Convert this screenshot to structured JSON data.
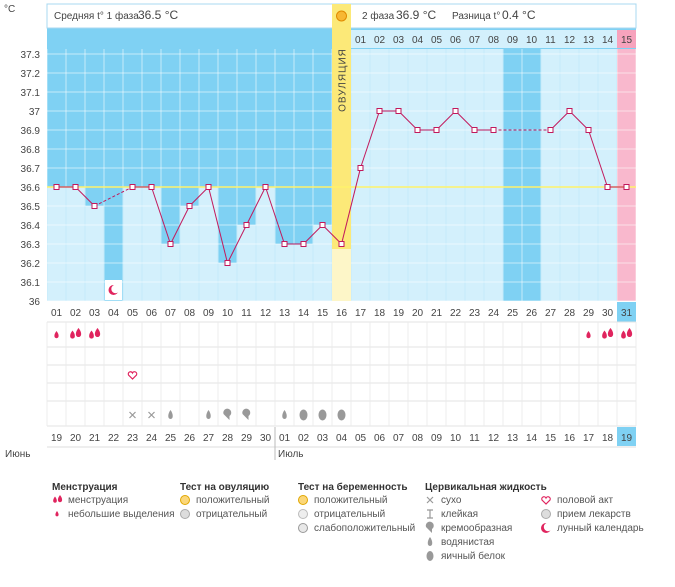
{
  "chart_data": {
    "type": "line",
    "ylabel": "°C",
    "yticks": [
      "37.3",
      "37.2",
      "37.1",
      "37",
      "36.9",
      "36.8",
      "36.7",
      "36.6",
      "36.5",
      "36.4",
      "36.3",
      "36.2",
      "36.1",
      "36"
    ],
    "ylim": [
      36,
      37.35
    ],
    "coverline": 36.6,
    "header": {
      "phase1_label": "Средняя t° 1 фаза",
      "phase1_value": "36.5 °C",
      "phase2_label": "2 фаза",
      "phase2_value": "36.9 °C",
      "diff_label": "Разница t°",
      "diff_value": "0.4 °C",
      "ovulation_label": "ОВУЛЯЦИЯ"
    },
    "cycle_days": [
      "01",
      "02",
      "03",
      "04",
      "05",
      "06",
      "07",
      "08",
      "09",
      "10",
      "11",
      "12",
      "13",
      "14",
      "15",
      "16",
      "17",
      "18",
      "19",
      "20",
      "21",
      "22",
      "23",
      "24",
      "25",
      "26",
      "27",
      "28",
      "29",
      "30",
      "31"
    ],
    "post_ovulation_days": [
      "01",
      "02",
      "03",
      "04",
      "05",
      "06",
      "07",
      "08",
      "09",
      "10",
      "11",
      "12",
      "13",
      "14",
      "15"
    ],
    "temperatures": [
      36.6,
      36.6,
      36.5,
      null,
      36.6,
      36.6,
      36.3,
      36.5,
      36.6,
      36.2,
      36.4,
      36.6,
      36.3,
      36.3,
      36.4,
      36.3,
      36.7,
      37.0,
      37.0,
      36.9,
      36.9,
      37.0,
      36.9,
      36.9,
      null,
      null,
      36.9,
      37.0,
      36.9,
      36.6,
      36.6
    ],
    "dates": [
      "19",
      "20",
      "21",
      "22",
      "23",
      "24",
      "25",
      "26",
      "27",
      "28",
      "29",
      "30",
      "01",
      "02",
      "03",
      "04",
      "05",
      "06",
      "07",
      "08",
      "09",
      "10",
      "11",
      "12",
      "13",
      "14",
      "15",
      "16",
      "17",
      "18",
      "19"
    ],
    "month_labels": [
      "Июнь",
      "Июль"
    ],
    "ovulation_day": 16,
    "today_index": 30,
    "menstruation_days": [
      1,
      2,
      3,
      29,
      30,
      31
    ],
    "heavy_days": [
      2,
      3,
      30,
      31
    ],
    "intercourse_days": [
      5
    ],
    "lunar_days": [
      4
    ],
    "cervical": [
      {
        "day": 5,
        "type": "dry"
      },
      {
        "day": 6,
        "type": "dry"
      },
      {
        "day": 7,
        "type": "watery"
      },
      {
        "day": 9,
        "type": "watery"
      },
      {
        "day": 10,
        "type": "creamy"
      },
      {
        "day": 11,
        "type": "creamy"
      },
      {
        "day": 13,
        "type": "watery"
      },
      {
        "day": 14,
        "type": "eggwhite"
      },
      {
        "day": 15,
        "type": "eggwhite"
      },
      {
        "day": 16,
        "type": "eggwhite"
      }
    ],
    "colors": {
      "blue": "#7fd1f3",
      "column": "#d3f0fc",
      "pink": "#f9b8cd",
      "ovulation": "#fcef9e",
      "line": "#c2185b",
      "accent": "#e0245e"
    },
    "legend": [
      {
        "title": "Менструация",
        "items": [
          {
            "icon": "menstruation-heavy-icon",
            "label": "менструация"
          },
          {
            "icon": "menstruation-light-icon",
            "label": "небольшие выделения"
          }
        ]
      },
      {
        "title": "Тест на овуляцию",
        "items": [
          {
            "icon": "test-positive-icon",
            "label": "положительный"
          },
          {
            "icon": "test-negative-icon",
            "label": "отрицательный"
          }
        ]
      },
      {
        "title": "Тест на беременность",
        "items": [
          {
            "icon": "pregnancy-positive-icon",
            "label": "положительный"
          },
          {
            "icon": "pregnancy-negative-icon",
            "label": "отрицательный"
          },
          {
            "icon": "pregnancy-weak-icon",
            "label": "слабоположительный"
          }
        ]
      },
      {
        "title": "Цервикальная жидкость",
        "items": [
          {
            "icon": "dry-icon",
            "label": "сухо"
          },
          {
            "icon": "sticky-icon",
            "label": "клейкая"
          },
          {
            "icon": "creamy-icon",
            "label": "кремообразная"
          },
          {
            "icon": "watery-icon",
            "label": "водянистая"
          },
          {
            "icon": "eggwhite-icon",
            "label": "яичный белок"
          }
        ]
      },
      {
        "title": "",
        "items": [
          {
            "icon": "heart-icon",
            "label": "половой акт"
          },
          {
            "icon": "pill-icon",
            "label": "прием лекарств"
          },
          {
            "icon": "moon-icon",
            "label": "лунный календарь"
          }
        ]
      }
    ]
  }
}
